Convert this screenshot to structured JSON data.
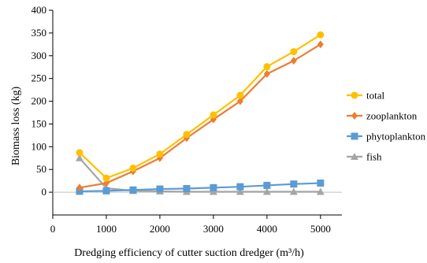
{
  "chart_data": {
    "type": "line",
    "xlabel": "Dredging efficiency of cutter suction dredger (m³/h)",
    "ylabel": "Biomass loss (kg)",
    "x": [
      500,
      1000,
      1500,
      2000,
      2500,
      3000,
      3500,
      4000,
      4500,
      5000
    ],
    "xlim": [
      0,
      5400
    ],
    "ylim": [
      -50,
      400
    ],
    "xticks": [
      0,
      1000,
      2000,
      3000,
      4000,
      5000
    ],
    "yticks": [
      0,
      50,
      100,
      150,
      200,
      250,
      300,
      350,
      400
    ],
    "grid": false,
    "legend_position": "right",
    "series": [
      {
        "name": "total",
        "color": "#FFC000",
        "marker": "circle",
        "values": [
          87,
          31,
          53,
          84,
          127,
          170,
          213,
          276,
          309,
          346
        ]
      },
      {
        "name": "zooplankton",
        "color": "#ED7D31",
        "marker": "diamond",
        "values": [
          10,
          20,
          46,
          75,
          119,
          160,
          200,
          260,
          289,
          325
        ]
      },
      {
        "name": "phytoplankton",
        "color": "#5B9BD5",
        "marker": "square",
        "values": [
          2,
          3,
          5,
          7,
          8,
          10,
          12,
          15,
          18,
          20
        ]
      },
      {
        "name": "fish",
        "color": "#A5A5A5",
        "marker": "triangle",
        "values": [
          75,
          9,
          3,
          2,
          1,
          1,
          1,
          1,
          1,
          1
        ]
      }
    ]
  }
}
